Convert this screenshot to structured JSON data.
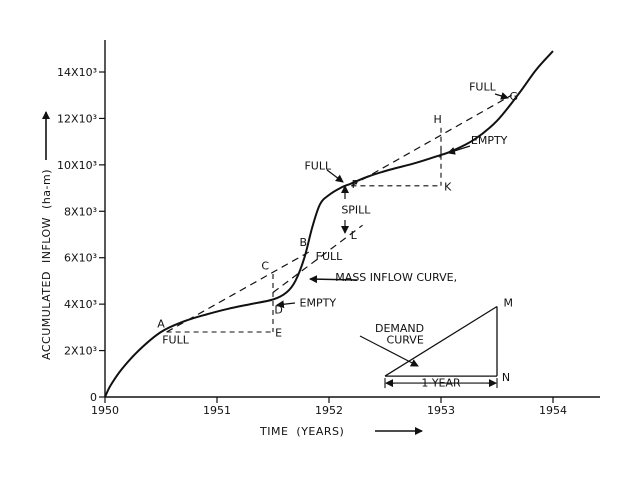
{
  "chart_data": {
    "type": "line",
    "xlabel": "TIME  (YEARS)",
    "ylabel": "ACCUMULATED  INFLOW  (ha-m)",
    "xlim": [
      1950,
      1954.4
    ],
    "ylim": [
      0,
      15000
    ],
    "x_ticks": [
      {
        "value": 1950,
        "label": "1950"
      },
      {
        "value": 1951,
        "label": "1951"
      },
      {
        "value": 1952,
        "label": "1952"
      },
      {
        "value": 1953,
        "label": "1953"
      },
      {
        "value": 1954,
        "label": "1954"
      }
    ],
    "y_ticks": [
      {
        "value": 0,
        "label": "0"
      },
      {
        "value": 2000,
        "label": "2X10³"
      },
      {
        "value": 4000,
        "label": "4X10³"
      },
      {
        "value": 6000,
        "label": "6X10³"
      },
      {
        "value": 8000,
        "label": "8X10³"
      },
      {
        "value": 10000,
        "label": "10X10³"
      },
      {
        "value": 12000,
        "label": "12X10³"
      },
      {
        "value": 14000,
        "label": "14X10³"
      }
    ],
    "series": [
      {
        "name": "MASS INFLOW CURVE",
        "x": [
          1950,
          1950.05,
          1950.15,
          1950.3,
          1950.5,
          1950.7,
          1950.9,
          1951.1,
          1951.3,
          1951.5,
          1951.62,
          1951.7,
          1951.78,
          1951.85,
          1951.92,
          1952.0,
          1952.1,
          1952.2,
          1952.35,
          1952.55,
          1952.75,
          1952.95,
          1953.1,
          1953.3,
          1953.5,
          1953.7,
          1953.85,
          1954.0
        ],
        "y": [
          0,
          500,
          1200,
          2000,
          2800,
          3250,
          3550,
          3800,
          4000,
          4200,
          4500,
          5000,
          6000,
          7300,
          8300,
          8700,
          9000,
          9200,
          9500,
          9800,
          10050,
          10350,
          10600,
          11100,
          11900,
          13100,
          14100,
          14900
        ]
      }
    ],
    "demand_lines": [
      {
        "x": [
          1950.55,
          1951.84
        ],
        "y": [
          2800,
          6300
        ]
      },
      {
        "x": [
          1951.5,
          1952.3
        ],
        "y": [
          4500,
          7400
        ]
      },
      {
        "x": [
          1952.2,
          1953.63
        ],
        "y": [
          9100,
          13000
        ]
      }
    ],
    "guide_lines": [
      {
        "x": [
          1951.5,
          1951.5
        ],
        "y": [
          5300,
          2800
        ]
      },
      {
        "x": [
          1950.55,
          1951.5
        ],
        "y": [
          2800,
          2800
        ]
      },
      {
        "x": [
          1953.0,
          1953.0
        ],
        "y": [
          11600,
          9100
        ]
      },
      {
        "x": [
          1952.2,
          1953.0
        ],
        "y": [
          9100,
          9100
        ]
      }
    ],
    "demand_triangle": {
      "hyp": {
        "x": [
          1952.5,
          1953.5
        ],
        "y": [
          900,
          3900
        ]
      },
      "bottom": {
        "x": [
          1952.5,
          1953.5
        ],
        "y": [
          900,
          900
        ]
      },
      "right": {
        "x": [
          1953.5,
          1953.5
        ],
        "y": [
          900,
          3900
        ]
      },
      "interval": {
        "x": [
          1952.5,
          1953.5
        ],
        "y": [
          600,
          600
        ]
      }
    },
    "annotations": [
      {
        "id": "A",
        "text": "A",
        "x": 1950.5,
        "y": 3000
      },
      {
        "id": "full-a",
        "text": "FULL",
        "x": 1950.63,
        "y": 2300
      },
      {
        "id": "B",
        "text": "B",
        "x": 1951.77,
        "y": 6500
      },
      {
        "id": "full-b",
        "text": "FULL",
        "x": 1952.0,
        "y": 5900
      },
      {
        "id": "C",
        "text": "C",
        "x": 1951.43,
        "y": 5500
      },
      {
        "id": "D",
        "text": "D",
        "x": 1951.55,
        "y": 3600
      },
      {
        "id": "E",
        "text": "E",
        "x": 1951.55,
        "y": 2600
      },
      {
        "id": "empty-d",
        "text": "EMPTY",
        "x": 1951.9,
        "y": 3900
      },
      {
        "id": "mass-label",
        "text": "MASS INFLOW CURVE,",
        "x": 1952.6,
        "y": 5000
      },
      {
        "id": "F",
        "text": "F",
        "x": 1952.23,
        "y": 9000
      },
      {
        "id": "full-f",
        "text": "FULL",
        "x": 1951.9,
        "y": 9800
      },
      {
        "id": "spill",
        "text": "SPILL",
        "x": 1952.24,
        "y": 7900
      },
      {
        "id": "L",
        "text": "L",
        "x": 1952.22,
        "y": 6800
      },
      {
        "id": "H",
        "text": "H",
        "x": 1952.97,
        "y": 11800
      },
      {
        "id": "J",
        "text": "J",
        "x": 1953.0,
        "y": 10400
      },
      {
        "id": "K",
        "text": "K",
        "x": 1953.06,
        "y": 8900
      },
      {
        "id": "empty-j",
        "text": "EMPTY",
        "x": 1953.43,
        "y": 10900
      },
      {
        "id": "G",
        "text": "G",
        "x": 1953.65,
        "y": 12800
      },
      {
        "id": "full-g",
        "text": "FULL",
        "x": 1953.37,
        "y": 13200
      },
      {
        "id": "M",
        "text": "M",
        "x": 1953.6,
        "y": 3900
      },
      {
        "id": "N",
        "text": "N",
        "x": 1953.58,
        "y": 700
      },
      {
        "id": "demand-1",
        "text": "DEMAND",
        "x": 1952.63,
        "y": 2800
      },
      {
        "id": "demand-2",
        "text": "CURVE",
        "x": 1952.68,
        "y": 2300
      },
      {
        "id": "one-year",
        "text": "1 YEAR",
        "x": 1953.0,
        "y": 450
      }
    ]
  }
}
